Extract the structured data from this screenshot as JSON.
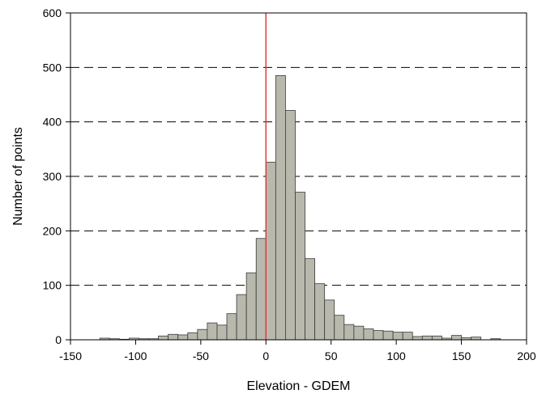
{
  "chart_data": {
    "type": "bar",
    "title": "",
    "xlabel": "Elevation - GDEM",
    "ylabel": "Number of points",
    "xlim": [
      -150,
      200
    ],
    "ylim": [
      0,
      600
    ],
    "xticks": [
      -150,
      -100,
      -50,
      0,
      50,
      100,
      150,
      200
    ],
    "yticks": [
      0,
      100,
      200,
      300,
      400,
      500,
      600
    ],
    "grid": "horizontal dashed",
    "bin_width": 7.5,
    "bins": [
      {
        "x0": -127.5,
        "value": 3
      },
      {
        "x0": -120,
        "value": 2
      },
      {
        "x0": -112.5,
        "value": 1
      },
      {
        "x0": -105,
        "value": 3
      },
      {
        "x0": -97.5,
        "value": 2
      },
      {
        "x0": -90,
        "value": 2
      },
      {
        "x0": -82.5,
        "value": 7
      },
      {
        "x0": -75,
        "value": 10
      },
      {
        "x0": -67.5,
        "value": 9
      },
      {
        "x0": -60,
        "value": 13
      },
      {
        "x0": -52.5,
        "value": 19
      },
      {
        "x0": -45,
        "value": 31
      },
      {
        "x0": -37.5,
        "value": 27
      },
      {
        "x0": -30,
        "value": 48
      },
      {
        "x0": -22.5,
        "value": 83
      },
      {
        "x0": -15,
        "value": 123
      },
      {
        "x0": -7.5,
        "value": 186
      },
      {
        "x0": 0,
        "value": 326
      },
      {
        "x0": 7.5,
        "value": 485
      },
      {
        "x0": 15,
        "value": 421
      },
      {
        "x0": 22.5,
        "value": 271
      },
      {
        "x0": 30,
        "value": 149
      },
      {
        "x0": 37.5,
        "value": 103
      },
      {
        "x0": 45,
        "value": 73
      },
      {
        "x0": 52.5,
        "value": 45
      },
      {
        "x0": 60,
        "value": 28
      },
      {
        "x0": 67.5,
        "value": 25
      },
      {
        "x0": 75,
        "value": 20
      },
      {
        "x0": 82.5,
        "value": 17
      },
      {
        "x0": 90,
        "value": 16
      },
      {
        "x0": 97.5,
        "value": 14
      },
      {
        "x0": 105,
        "value": 14
      },
      {
        "x0": 112.5,
        "value": 6
      },
      {
        "x0": 120,
        "value": 7
      },
      {
        "x0": 127.5,
        "value": 7
      },
      {
        "x0": 135,
        "value": 3
      },
      {
        "x0": 142.5,
        "value": 8
      },
      {
        "x0": 150,
        "value": 4
      },
      {
        "x0": 157.5,
        "value": 5
      },
      {
        "x0": 172.5,
        "value": 2
      }
    ],
    "reference_line": {
      "x": 0,
      "color": "#e03c3c"
    },
    "colors": {
      "bar_fill": "#b9b8ad",
      "bar_stroke": "#3a3a3a",
      "grid": "#000000"
    }
  }
}
